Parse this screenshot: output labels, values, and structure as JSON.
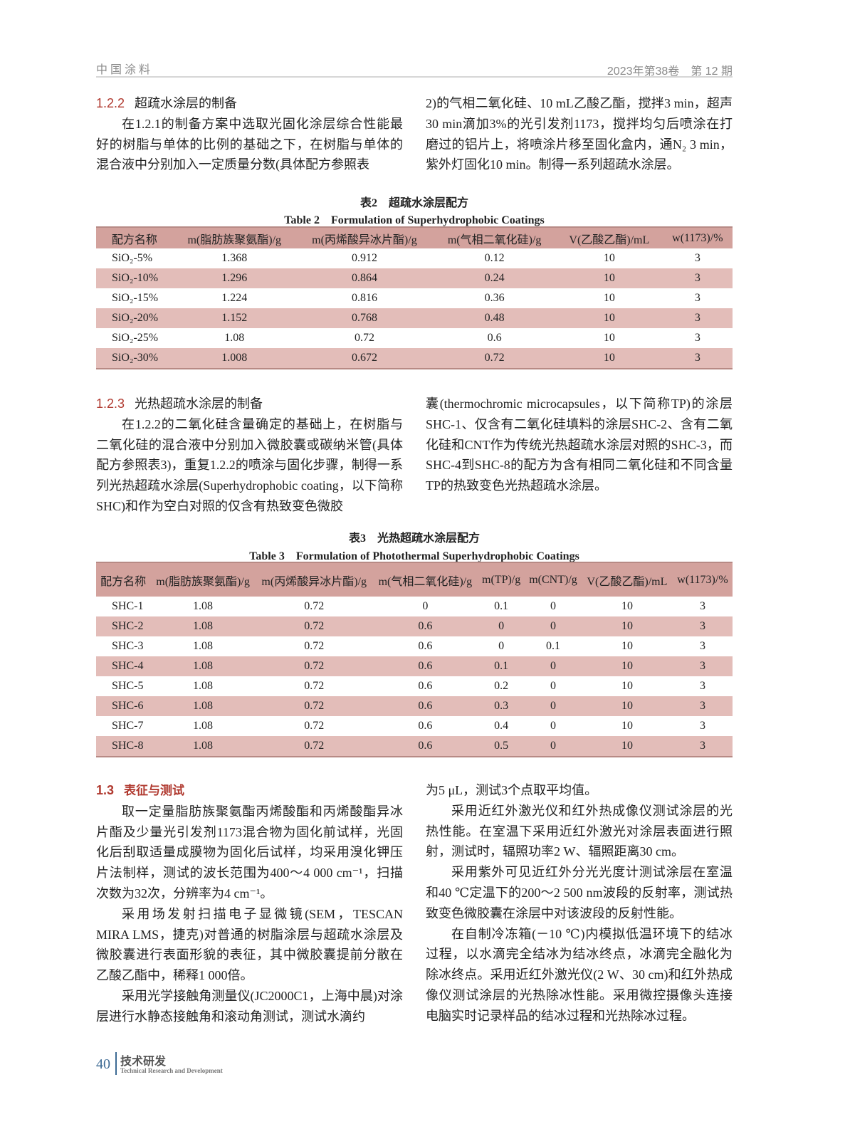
{
  "header": {
    "journal": "中国涂料",
    "issue": "2023年第38卷　第 12 期"
  },
  "s122": {
    "num": "1.2.2",
    "title": "超疏水涂层的制备",
    "left": "在1.2.1的制备方案中选取光固化涂层综合性能最好的树脂与单体的比例的基础之下，在树脂与单体的混合液中分别加入一定质量分数(具体配方参照表",
    "right": "2)的气相二氧化硅、10 mL乙酸乙酯，搅拌3 min，超声30 min滴加3%的光引发剂1173，搅拌均匀后喷涂在打磨过的铝片上，将喷涂片移至固化盒内，通N₂ 3 min，紫外灯固化10 min。制得一系列超疏水涂层。"
  },
  "table2": {
    "caption_cn": "表2　超疏水涂层配方",
    "caption_en": "Table 2　Formulation of Superhydrophobic Coatings",
    "headers": [
      "配方名称",
      "m(脂肪族聚氨酯)/g",
      "m(丙烯酸异冰片酯)/g",
      "m(气相二氧化硅)/g",
      "V(乙酸乙酯)/mL",
      "w(1173)/%"
    ],
    "rows": [
      [
        "SiO₂-5%",
        "1.368",
        "0.912",
        "0.12",
        "10",
        "3"
      ],
      [
        "SiO₂-10%",
        "1.296",
        "0.864",
        "0.24",
        "10",
        "3"
      ],
      [
        "SiO₂-15%",
        "1.224",
        "0.816",
        "0.36",
        "10",
        "3"
      ],
      [
        "SiO₂-20%",
        "1.152",
        "0.768",
        "0.48",
        "10",
        "3"
      ],
      [
        "SiO₂-25%",
        "1.08",
        "0.72",
        "0.6",
        "10",
        "3"
      ],
      [
        "SiO₂-30%",
        "1.008",
        "0.672",
        "0.72",
        "10",
        "3"
      ]
    ]
  },
  "s123": {
    "num": "1.2.3",
    "title": "光热超疏水涂层的制备",
    "left": "在1.2.2的二氧化硅含量确定的基础上，在树脂与二氧化硅的混合液中分别加入微胶囊或碳纳米管(具体配方参照表3)，重复1.2.2的喷涂与固化步骤，制得一系列光热超疏水涂层(Superhydrophobic coating，以下简称SHC)和作为空白对照的仅含有热致变色微胶",
    "right": "囊(thermochromic microcapsules，以下简称TP)的涂层SHC-1、仅含有二氧化硅填料的涂层SHC-2、含有二氧化硅和CNT作为传统光热超疏水涂层对照的SHC-3，而SHC-4到SHC-8的配方为含有相同二氧化硅和不同含量TP的热致变色光热超疏水涂层。"
  },
  "table3": {
    "caption_cn": "表3　光热超疏水涂层配方",
    "caption_en": "Table 3　Formulation of Photothermal Superhydrophobic Coatings",
    "headers": [
      "配方名称",
      "m(脂肪族聚氨酯)/g",
      "m(丙烯酸异冰片酯)/g",
      "m(气相二氧化硅)/g",
      "m(TP)/g",
      "m(CNT)/g",
      "V(乙酸乙酯)/mL",
      "w(1173)/%"
    ],
    "rows": [
      [
        "SHC-1",
        "1.08",
        "0.72",
        "0",
        "0.1",
        "0",
        "10",
        "3"
      ],
      [
        "SHC-2",
        "1.08",
        "0.72",
        "0.6",
        "0",
        "0",
        "10",
        "3"
      ],
      [
        "SHC-3",
        "1.08",
        "0.72",
        "0.6",
        "0",
        "0.1",
        "10",
        "3"
      ],
      [
        "SHC-4",
        "1.08",
        "0.72",
        "0.6",
        "0.1",
        "0",
        "10",
        "3"
      ],
      [
        "SHC-5",
        "1.08",
        "0.72",
        "0.6",
        "0.2",
        "0",
        "10",
        "3"
      ],
      [
        "SHC-6",
        "1.08",
        "0.72",
        "0.6",
        "0.3",
        "0",
        "10",
        "3"
      ],
      [
        "SHC-7",
        "1.08",
        "0.72",
        "0.6",
        "0.4",
        "0",
        "10",
        "3"
      ],
      [
        "SHC-8",
        "1.08",
        "0.72",
        "0.6",
        "0.5",
        "0",
        "10",
        "3"
      ]
    ]
  },
  "s13": {
    "num": "1.3",
    "title": "表征与测试",
    "left": [
      "取一定量脂肪族聚氨酯丙烯酸酯和丙烯酸酯异冰片酯及少量光引发剂1173混合物为固化前试样，光固化后刮取适量成膜物为固化后试样，均采用溴化钾压片法制样，测试的波长范围为400～4 000 cm⁻¹，扫描次数为32次，分辨率为4 cm⁻¹。",
      "采用场发射扫描电子显微镜(SEM，TESCAN MIRA LMS，捷克)对普通的树脂涂层与超疏水涂层及微胶囊进行表面形貌的表征，其中微胶囊提前分散在乙酸乙酯中，稀释1 000倍。",
      "采用光学接触角测量仪(JC2000C1，上海中晨)对涂层进行水静态接触角和滚动角测试，测试水滴约"
    ],
    "right": [
      "为5 μL，测试3个点取平均值。",
      "采用近红外激光仪和红外热成像仪测试涂层的光热性能。在室温下采用近红外激光对涂层表面进行照射，测试时，辐照功率2 W、辐照距离30 cm。",
      "采用紫外可见近红外分光光度计测试涂层在室温和40 ℃定温下的200～2 500 nm波段的反射率，测试热致变色微胶囊在涂层中对该波段的反射性能。",
      "在自制冷冻箱(－10 ℃)内模拟低温环境下的结冰过程，以水滴完全结冰为结冰终点，冰滴完全融化为除冰终点。采用近红外激光仪(2 W、30 cm)和红外热成像仪测试涂层的光热除冰性能。采用微控摄像头连接电脑实时记录样品的结冰过程和光热除冰过程。"
    ]
  },
  "footer": {
    "page": "40",
    "section_cn": "技术研发",
    "section_en": "Technical Research and Development"
  },
  "colors": {
    "accent": "#b0392f",
    "table_header": "#d3a29d",
    "table_stripe": "#e3bdb9",
    "footer": "#3d6a94"
  }
}
